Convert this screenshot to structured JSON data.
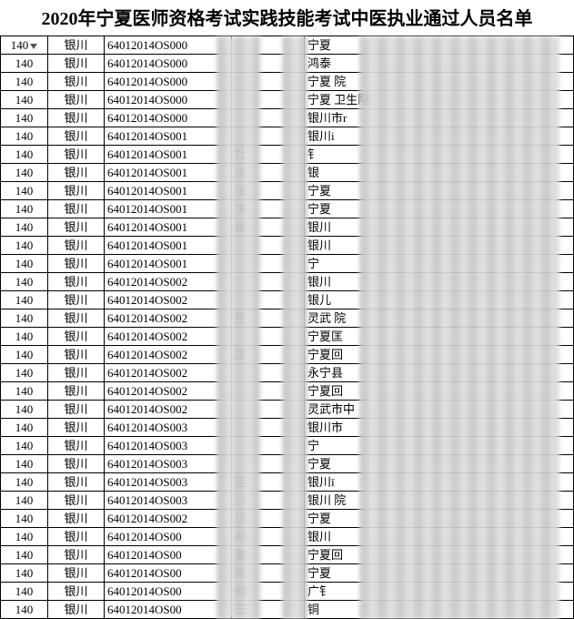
{
  "title": "2020年宁夏医师资格考试实践技能考试中医执业通过人员名单",
  "columns_widths": [
    52,
    62,
    140,
    80,
    297
  ],
  "rows": [
    {
      "a": "140",
      "b": "银川",
      "c": "64012014OS000",
      "d": "",
      "e": "宁夏"
    },
    {
      "a": "140",
      "b": "银川",
      "c": "64012014OS000",
      "d": "",
      "e": "鸿泰"
    },
    {
      "a": "140",
      "b": "银川",
      "c": "64012014OS000",
      "d": "",
      "e": "宁夏                         院"
    },
    {
      "a": "140",
      "b": "银川",
      "c": "64012014OS000",
      "d": "",
      "e": "宁夏                 卫生院"
    },
    {
      "a": "140",
      "b": "银川",
      "c": "64012014OS000",
      "d": "",
      "e": "银川市r"
    },
    {
      "a": "140",
      "b": "银川",
      "c": "64012014OS001",
      "d": "",
      "e": "银川i"
    },
    {
      "a": "140",
      "b": "银川",
      "c": "64012014OS001",
      "d": "杜",
      "e": "钅"
    },
    {
      "a": "140",
      "b": "银川",
      "c": "64012014OS001",
      "d": "余",
      "e": "银"
    },
    {
      "a": "140",
      "b": "银川",
      "c": "64012014OS001",
      "d": "张",
      "e": "宁夏"
    },
    {
      "a": "140",
      "b": "银川",
      "c": "64012014OS001",
      "d": "李",
      "e": "宁夏"
    },
    {
      "a": "140",
      "b": "银川",
      "c": "64012014OS001",
      "d": "张",
      "e": "银川"
    },
    {
      "a": "140",
      "b": "银川",
      "c": "64012014OS001",
      "d": "",
      "e": "银川"
    },
    {
      "a": "140",
      "b": "银川",
      "c": "64012014OS001",
      "d": "",
      "e": "宁"
    },
    {
      "a": "140",
      "b": "银川",
      "c": "64012014OS002",
      "d": "",
      "e": "银川"
    },
    {
      "a": "140",
      "b": "银川",
      "c": "64012014OS002",
      "d": "",
      "e": "银儿"
    },
    {
      "a": "140",
      "b": "银川",
      "c": "64012014OS002",
      "d": "臣",
      "e": "灵武          院"
    },
    {
      "a": "140",
      "b": "银川",
      "c": "64012014OS002",
      "d": "",
      "e": "宁夏匡"
    },
    {
      "a": "140",
      "b": "银川",
      "c": "64012014OS002",
      "d": "匡",
      "e": "宁夏回"
    },
    {
      "a": "140",
      "b": "银川",
      "c": "64012014OS002",
      "d": "",
      "e": "永宁县"
    },
    {
      "a": "140",
      "b": "银川",
      "c": "64012014OS002",
      "d": "",
      "e": "宁夏回"
    },
    {
      "a": "140",
      "b": "银川",
      "c": "64012014OS002",
      "d": "",
      "e": "灵武市中"
    },
    {
      "a": "140",
      "b": "银川",
      "c": "64012014OS003",
      "d": "",
      "e": "银川市"
    },
    {
      "a": "140",
      "b": "银川",
      "c": "64012014OS003",
      "d": "",
      "e": "宁"
    },
    {
      "a": "140",
      "b": "银川",
      "c": "64012014OS003",
      "d": "",
      "e": "宁夏"
    },
    {
      "a": "140",
      "b": "银川",
      "c": "64012014OS003",
      "d": "臣",
      "e": "银川ī"
    },
    {
      "a": "140",
      "b": "银川",
      "c": "64012014OS003",
      "d": "沙",
      "e": "银川                         院"
    },
    {
      "a": "140",
      "b": "银川",
      "c": "64012014OS002",
      "d": "伏",
      "e": "宁夏"
    },
    {
      "a": "140",
      "b": "银川",
      "c": "64012014OS00",
      "d": "苟",
      "e": "银川"
    },
    {
      "a": "140",
      "b": "银川",
      "c": "64012014OS00",
      "d": "姜",
      "e": "宁夏回"
    },
    {
      "a": "140",
      "b": "银川",
      "c": "64012014OS00",
      "d": "陈",
      "e": "宁夏"
    },
    {
      "a": "140",
      "b": "银川",
      "c": "64012014OS00",
      "d": "何",
      "e": "广钅"
    },
    {
      "a": "140",
      "b": "银川",
      "c": "64012014OS00",
      "d": "三",
      "e": "铜"
    }
  ]
}
